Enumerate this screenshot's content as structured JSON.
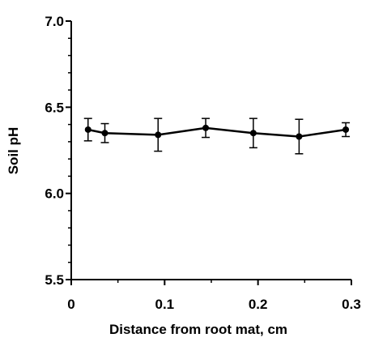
{
  "chart_data": {
    "type": "line",
    "title": "",
    "xlabel": "Distance from root mat, cm",
    "ylabel": "Soil pH",
    "xlim": [
      0,
      0.3
    ],
    "ylim": [
      5.5,
      7.0
    ],
    "x_ticks": [
      0,
      0.1,
      0.2,
      0.3
    ],
    "x_tick_labels": [
      "0",
      "0.1",
      "0.2",
      "0.3"
    ],
    "y_ticks": [
      5.5,
      6.0,
      6.5,
      7.0
    ],
    "y_tick_labels": [
      "5.5",
      "6.0",
      "6.5",
      "7.0"
    ],
    "y_minor_step": 0.1,
    "x_minor_step": 0.05,
    "grid": false,
    "legend": "none",
    "series": [
      {
        "x": [
          0.018,
          0.036,
          0.093,
          0.144,
          0.195,
          0.244,
          0.294
        ],
        "y": [
          6.37,
          6.35,
          6.34,
          6.38,
          6.35,
          6.33,
          6.37
        ],
        "error": [
          0.065,
          0.055,
          0.095,
          0.055,
          0.085,
          0.1,
          0.04
        ],
        "color": "#000000",
        "marker": "circle"
      }
    ]
  }
}
